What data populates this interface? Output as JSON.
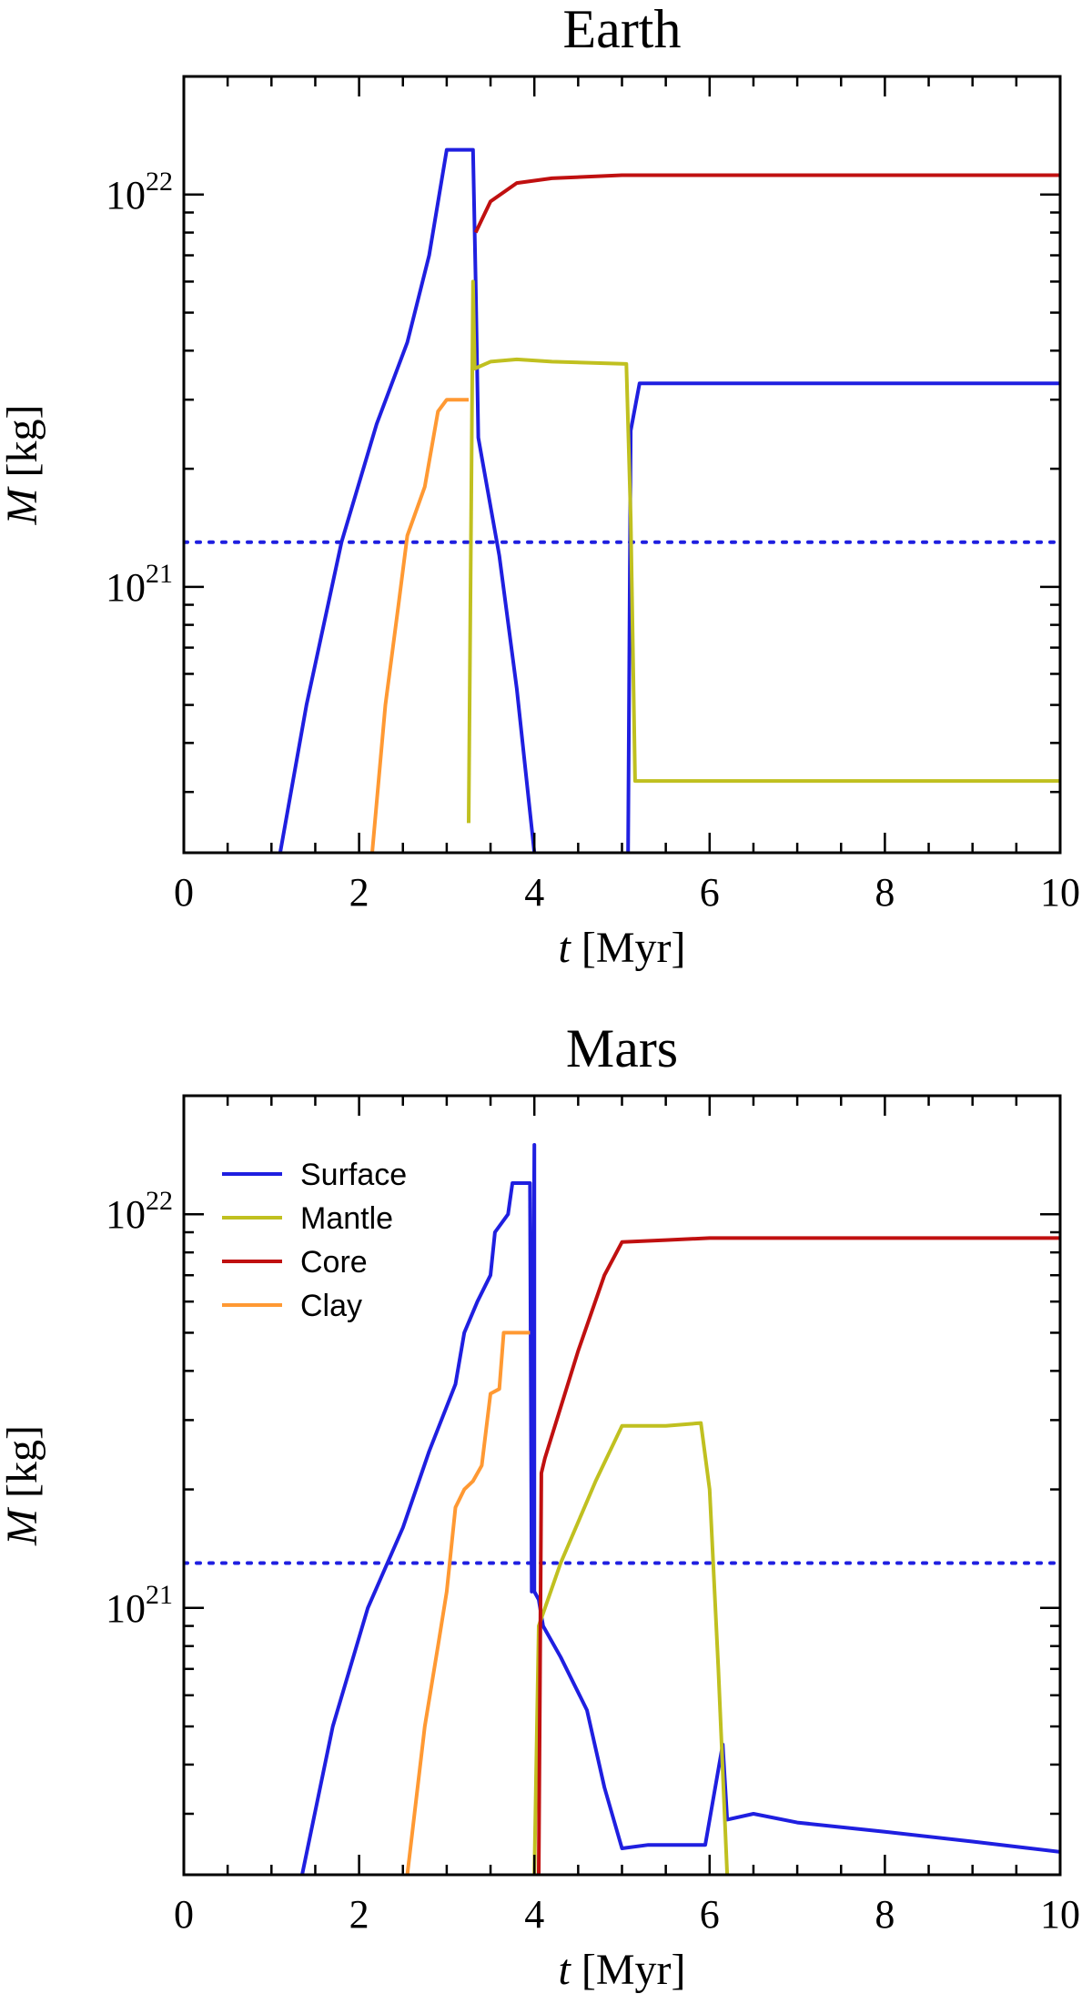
{
  "chart_data": [
    {
      "type": "line",
      "title": "Earth",
      "xlabel_var": "t",
      "xlabel_unit": " [Myr]",
      "ylabel_var": "M",
      "ylabel_unit": " [kg]",
      "xlim": [
        0,
        10
      ],
      "ylim": [
        2.1e+20,
        2e+22
      ],
      "yscale": "log",
      "xticks": [
        0,
        2,
        4,
        6,
        8,
        10
      ],
      "yticks_major": [
        {
          "value": 1e+21,
          "base": "10",
          "exp": "21"
        },
        {
          "value": 1e+22,
          "base": "10",
          "exp": "22"
        }
      ],
      "reference_line": {
        "y": 1.3e+21,
        "color": "#1f1fe0",
        "style": "dotted"
      },
      "legend": null,
      "series": [
        {
          "name": "Surface",
          "color": "#1f1fe0",
          "segments": [
            [
              [
                1.1,
                2.1e+20
              ],
              [
                1.4,
                5e+20
              ],
              [
                1.8,
                1.3e+21
              ],
              [
                2.2,
                2.6e+21
              ],
              [
                2.55,
                4.2e+21
              ],
              [
                2.8,
                7e+21
              ],
              [
                3.0,
                1.3e+22
              ],
              [
                3.3,
                1.3e+22
              ],
              [
                3.33,
                6e+21
              ],
              [
                3.36,
                2.4e+21
              ],
              [
                3.6,
                1.2e+21
              ],
              [
                3.8,
                5.5e+20
              ],
              [
                4.0,
                2.1e+20
              ]
            ],
            [
              [
                5.07,
                2.1e+20
              ],
              [
                5.1,
                2.5e+21
              ],
              [
                5.2,
                3.3e+21
              ],
              [
                10.0,
                3.3e+21
              ]
            ]
          ]
        },
        {
          "name": "Mantle",
          "color": "#c0c020",
          "segments": [
            [
              [
                3.25,
                2.5e+20
              ],
              [
                3.3,
                6e+21
              ],
              [
                3.32,
                3.6e+21
              ],
              [
                3.5,
                3.75e+21
              ],
              [
                3.8,
                3.8e+21
              ],
              [
                4.2,
                3.75e+21
              ],
              [
                5.05,
                3.7e+21
              ],
              [
                5.1,
                1.5e+21
              ],
              [
                5.15,
                3.2e+20
              ],
              [
                10.0,
                3.2e+20
              ]
            ]
          ]
        },
        {
          "name": "Core",
          "color": "#c01010",
          "segments": [
            [
              [
                3.33,
                8e+21
              ],
              [
                3.5,
                9.6e+21
              ],
              [
                3.8,
                1.07e+22
              ],
              [
                4.2,
                1.1e+22
              ],
              [
                5.0,
                1.12e+22
              ],
              [
                10.0,
                1.12e+22
              ]
            ]
          ]
        },
        {
          "name": "Clay",
          "color": "#ff9933",
          "segments": [
            [
              [
                2.15,
                2.1e+20
              ],
              [
                2.3,
                5e+20
              ],
              [
                2.45,
                9e+20
              ],
              [
                2.55,
                1.35e+21
              ],
              [
                2.75,
                1.8e+21
              ],
              [
                2.9,
                2.8e+21
              ],
              [
                3.0,
                3e+21
              ],
              [
                3.25,
                3e+21
              ]
            ]
          ]
        }
      ]
    },
    {
      "type": "line",
      "title": "Mars",
      "xlabel_var": "t",
      "xlabel_unit": " [Myr]",
      "ylabel_var": "M",
      "ylabel_unit": " [kg]",
      "xlim": [
        0,
        10
      ],
      "ylim": [
        2.1e+20,
        2e+22
      ],
      "yscale": "log",
      "xticks": [
        0,
        2,
        4,
        6,
        8,
        10
      ],
      "yticks_major": [
        {
          "value": 1e+21,
          "base": "10",
          "exp": "21"
        },
        {
          "value": 1e+22,
          "base": "10",
          "exp": "22"
        }
      ],
      "reference_line": {
        "y": 1.3e+21,
        "color": "#1f1fe0",
        "style": "dotted"
      },
      "legend": {
        "position": "top-left",
        "entries": [
          "Surface",
          "Mantle",
          "Core",
          "Clay"
        ]
      },
      "series": [
        {
          "name": "Surface",
          "color": "#1f1fe0",
          "segments": [
            [
              [
                1.35,
                2.1e+20
              ],
              [
                1.7,
                5e+20
              ],
              [
                2.1,
                1e+21
              ],
              [
                2.5,
                1.6e+21
              ],
              [
                2.8,
                2.5e+21
              ],
              [
                3.1,
                3.7e+21
              ],
              [
                3.2,
                5e+21
              ],
              [
                3.35,
                6e+21
              ],
              [
                3.5,
                7e+21
              ],
              [
                3.55,
                9e+21
              ],
              [
                3.7,
                1e+22
              ],
              [
                3.75,
                1.2e+22
              ],
              [
                3.95,
                1.2e+22
              ],
              [
                3.97,
                1.1e+21
              ],
              [
                4.0,
                1.5e+22
              ],
              [
                4.0,
                1.1e+21
              ],
              [
                4.05,
                1.05e+21
              ],
              [
                4.1,
                9e+20
              ],
              [
                4.3,
                7.5e+20
              ],
              [
                4.6,
                5.5e+20
              ],
              [
                4.8,
                3.5e+20
              ],
              [
                5.0,
                2.45e+20
              ],
              [
                5.3,
                2.5e+20
              ],
              [
                5.95,
                2.5e+20
              ],
              [
                6.15,
                4.5e+20
              ],
              [
                6.2,
                2.9e+20
              ],
              [
                6.5,
                3e+20
              ],
              [
                7.0,
                2.85e+20
              ],
              [
                8.0,
                2.7e+20
              ],
              [
                9.0,
                2.55e+20
              ],
              [
                10.0,
                2.4e+20
              ]
            ]
          ]
        },
        {
          "name": "Mantle",
          "color": "#c0c020",
          "segments": [
            [
              [
                4.0,
                2.1e+20
              ],
              [
                4.05,
                9e+20
              ],
              [
                4.3,
                1.3e+21
              ],
              [
                4.7,
                2.1e+21
              ],
              [
                5.0,
                2.9e+21
              ],
              [
                5.5,
                2.9e+21
              ],
              [
                5.9,
                2.95e+21
              ],
              [
                6.0,
                2e+21
              ],
              [
                6.1,
                7e+20
              ],
              [
                6.2,
                2.1e+20
              ]
            ]
          ]
        },
        {
          "name": "Core",
          "color": "#c01010",
          "segments": [
            [
              [
                4.05,
                2.1e+20
              ],
              [
                4.08,
                2.2e+21
              ],
              [
                4.12,
                2.4e+21
              ],
              [
                4.5,
                4.5e+21
              ],
              [
                4.8,
                7e+21
              ],
              [
                5.0,
                8.5e+21
              ],
              [
                5.5,
                8.6e+21
              ],
              [
                6.0,
                8.7e+21
              ],
              [
                10.0,
                8.7e+21
              ]
            ]
          ]
        },
        {
          "name": "Clay",
          "color": "#ff9933",
          "segments": [
            [
              [
                2.55,
                2.1e+20
              ],
              [
                2.75,
                5e+20
              ],
              [
                2.9,
                8e+20
              ],
              [
                3.0,
                1.1e+21
              ],
              [
                3.1,
                1.8e+21
              ],
              [
                3.2,
                2e+21
              ],
              [
                3.3,
                2.1e+21
              ],
              [
                3.4,
                2.3e+21
              ],
              [
                3.5,
                3.5e+21
              ],
              [
                3.6,
                3.6e+21
              ],
              [
                3.65,
                5e+21
              ],
              [
                3.95,
                5e+21
              ]
            ]
          ]
        }
      ]
    }
  ]
}
